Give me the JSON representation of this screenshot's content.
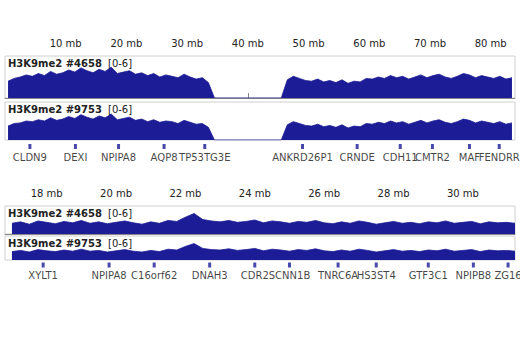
{
  "chart_data": [
    {
      "type": "area",
      "x": [
        0.5,
        1.5,
        2.5,
        3.5,
        4.5,
        5.5,
        6.5,
        7.5,
        8.5,
        9.5,
        10.5,
        11.5,
        12.5,
        13.5,
        14.5,
        15.5,
        16.5,
        17.5,
        18.5,
        19.5,
        20.5,
        21.5,
        22.5,
        23.5,
        24.5,
        25.5,
        26.5,
        27.5,
        28.5,
        29.5,
        30.5,
        31.5,
        32.5,
        33.5,
        34.5,
        35.5,
        36.5,
        37.5,
        38.5,
        39.5,
        40.5,
        41.5,
        42.5,
        43.5,
        44.5,
        45.5,
        46.5,
        47.5,
        48.5,
        49.5,
        50.5,
        51.5,
        52.5,
        53.5,
        54.5,
        55.5,
        56.5,
        57.5,
        58.5,
        59.5,
        60.5,
        61.5,
        62.5,
        63.5,
        64.5,
        65.5,
        66.5,
        67.5,
        68.5,
        69.5,
        70.5,
        71.5,
        72.5,
        73.5,
        74.5,
        75.5,
        76.5,
        77.5,
        78.5,
        79.5,
        80.5,
        81.5,
        82.5,
        83.5
      ],
      "xlim": [
        0,
        84
      ],
      "xticks": [
        {
          "value": 10,
          "label": "10 mb"
        },
        {
          "value": 20,
          "label": "20 mb"
        },
        {
          "value": 30,
          "label": "30 mb"
        },
        {
          "value": 40,
          "label": "40 mb"
        },
        {
          "value": 50,
          "label": "50 mb"
        },
        {
          "value": 60,
          "label": "60 mb"
        },
        {
          "value": 70,
          "label": "70 mb"
        },
        {
          "value": 80,
          "label": "80 mb"
        }
      ],
      "ylim": [
        0,
        6
      ],
      "range_label": "[0-6]",
      "tick_labels": "x",
      "series": [
        {
          "name": "H3K9me2 #4658",
          "color": "#1c1c96",
          "values": [
            2.4,
            2.8,
            3.0,
            3.3,
            3.1,
            3.5,
            3.2,
            3.8,
            3.4,
            3.6,
            4.0,
            3.7,
            4.3,
            3.9,
            3.6,
            4.1,
            3.8,
            4.4,
            3.5,
            3.7,
            3.9,
            3.4,
            3.6,
            3.2,
            3.5,
            3.0,
            3.3,
            3.1,
            2.9,
            3.4,
            3.0,
            2.7,
            2.9,
            2.2,
            0,
            0,
            0,
            0,
            0,
            0,
            0,
            0,
            0,
            0,
            0,
            0,
            2.6,
            3.1,
            2.8,
            2.5,
            2.4,
            2.7,
            2.3,
            2.5,
            2.2,
            2.6,
            2.1,
            2.4,
            2.3,
            2.8,
            2.7,
            3.0,
            2.8,
            3.2,
            2.9,
            3.1,
            2.7,
            3.0,
            3.3,
            2.9,
            3.2,
            3.4,
            3.0,
            2.8,
            3.1,
            3.5,
            3.3,
            2.9,
            3.2,
            3.0,
            2.8,
            3.1,
            2.7,
            2.9
          ]
        },
        {
          "name": "H3K9me2 #9753",
          "color": "#1c1c96",
          "values": [
            2.2,
            2.6,
            2.7,
            3.0,
            2.9,
            3.2,
            3.0,
            3.5,
            3.1,
            3.3,
            3.7,
            3.4,
            4.0,
            3.6,
            3.3,
            3.8,
            3.5,
            4.1,
            3.2,
            3.4,
            3.6,
            3.1,
            3.3,
            2.9,
            3.2,
            2.8,
            3.0,
            2.9,
            2.6,
            3.1,
            2.8,
            2.5,
            2.6,
            2.0,
            0,
            0,
            0,
            0,
            0,
            0,
            0,
            0,
            0,
            0,
            0,
            0,
            2.4,
            2.9,
            2.6,
            2.3,
            2.2,
            2.5,
            2.1,
            2.3,
            2.0,
            2.4,
            1.9,
            2.2,
            2.1,
            2.6,
            2.5,
            2.8,
            2.6,
            3.0,
            2.7,
            2.9,
            2.5,
            2.8,
            3.1,
            2.7,
            3.0,
            3.2,
            2.8,
            2.6,
            2.9,
            3.3,
            3.1,
            2.7,
            3.0,
            2.8,
            2.6,
            2.9,
            2.5,
            2.7
          ]
        }
      ],
      "annotations": [
        {
          "text": "CLDN9",
          "x": 4.1
        },
        {
          "text": "DEXI",
          "x": 11.6
        },
        {
          "text": "NPIPA8",
          "x": 18.7
        },
        {
          "text": "AQP8",
          "x": 26.2
        },
        {
          "text": "TP53TG3E",
          "x": 32.9
        },
        {
          "text": "ANKRD26P1",
          "x": 49
        },
        {
          "text": "CRNDE",
          "x": 58
        },
        {
          "text": "CDH11",
          "x": 65.1
        },
        {
          "text": "CMTR2",
          "x": 70.4
        },
        {
          "text": "MAF",
          "x": 76.5
        },
        {
          "text": "FENDRR",
          "x": 81.4
        }
      ]
    },
    {
      "type": "area",
      "x": [
        17,
        17.25,
        17.5,
        17.75,
        18,
        18.25,
        18.5,
        18.75,
        19,
        19.25,
        19.5,
        19.75,
        20,
        20.25,
        20.5,
        20.75,
        21,
        21.25,
        21.5,
        21.75,
        22,
        22.25,
        22.5,
        22.75,
        23,
        23.25,
        23.5,
        23.75,
        24,
        24.25,
        24.5,
        24.75,
        25,
        25.25,
        25.5,
        25.75,
        26,
        26.25,
        26.5,
        26.75,
        27,
        27.25,
        27.5,
        27.75,
        28,
        28.25,
        28.5,
        28.75,
        29,
        29.25,
        29.5,
        29.75,
        30,
        30.25,
        30.5,
        30.75,
        31,
        31.25,
        31.5
      ],
      "xlim": [
        16.8,
        31.5
      ],
      "xticks": [
        {
          "value": 18,
          "label": "18 mb"
        },
        {
          "value": 20,
          "label": "20 mb"
        },
        {
          "value": 22,
          "label": "22 mb"
        },
        {
          "value": 24,
          "label": "24 mb"
        },
        {
          "value": 26,
          "label": "26 mb"
        },
        {
          "value": 28,
          "label": "28 mb"
        },
        {
          "value": 30,
          "label": "30 mb"
        }
      ],
      "ylim": [
        0,
        6
      ],
      "range_label": "[0-6]",
      "tick_labels": "x",
      "series": [
        {
          "name": "H3K9me2 #4658",
          "color": "#1c1c96",
          "values": [
            2.3,
            2.6,
            2.1,
            2.8,
            2.5,
            2.2,
            2.7,
            2.4,
            2.9,
            2.3,
            2.6,
            2.2,
            2.5,
            2.8,
            2.4,
            2.1,
            2.6,
            2.3,
            2.9,
            2.7,
            3.6,
            4.4,
            3.1,
            2.8,
            2.6,
            2.9,
            2.5,
            2.7,
            3.0,
            2.4,
            2.8,
            2.6,
            2.3,
            2.7,
            2.5,
            2.9,
            2.4,
            2.2,
            2.6,
            2.3,
            2.8,
            2.5,
            2.1,
            2.4,
            2.7,
            2.3,
            2.5,
            2.2,
            2.6,
            2.4,
            2.8,
            2.3,
            2.5,
            2.7,
            2.2,
            2.6,
            2.4,
            2.5,
            2.3
          ]
        },
        {
          "name": "H3K9me2 #9753",
          "color": "#1c1c96",
          "values": [
            2.1,
            2.4,
            2.0,
            2.6,
            2.3,
            2.1,
            2.5,
            2.2,
            2.7,
            2.2,
            2.4,
            2.0,
            2.3,
            2.6,
            2.2,
            2.0,
            2.4,
            2.1,
            2.7,
            2.5,
            3.4,
            4.1,
            2.9,
            2.6,
            2.5,
            2.8,
            2.4,
            2.6,
            2.9,
            2.3,
            2.7,
            2.5,
            2.2,
            2.6,
            2.4,
            2.8,
            2.3,
            2.1,
            2.5,
            2.2,
            2.7,
            2.4,
            2.0,
            2.3,
            2.6,
            2.2,
            2.4,
            2.1,
            2.5,
            2.3,
            2.7,
            2.2,
            2.4,
            2.6,
            2.1,
            2.5,
            2.3,
            2.4,
            2.2
          ]
        }
      ],
      "annotations": [
        {
          "text": "XYLT1",
          "x": 17.9
        },
        {
          "text": "NPIPA8",
          "x": 19.8
        },
        {
          "text": "C16orf62",
          "x": 21.1
        },
        {
          "text": "DNAH3",
          "x": 22.7
        },
        {
          "text": "CDR2",
          "x": 24.0
        },
        {
          "text": "SCNN1B",
          "x": 25.0
        },
        {
          "text": "TNRC6A",
          "x": 26.4
        },
        {
          "text": "HS3ST4",
          "x": 27.5
        },
        {
          "text": "GTF3C1",
          "x": 29.0
        },
        {
          "text": "NPIPB8",
          "x": 30.3
        },
        {
          "text": "ZG16",
          "x": 31.3
        }
      ]
    }
  ]
}
